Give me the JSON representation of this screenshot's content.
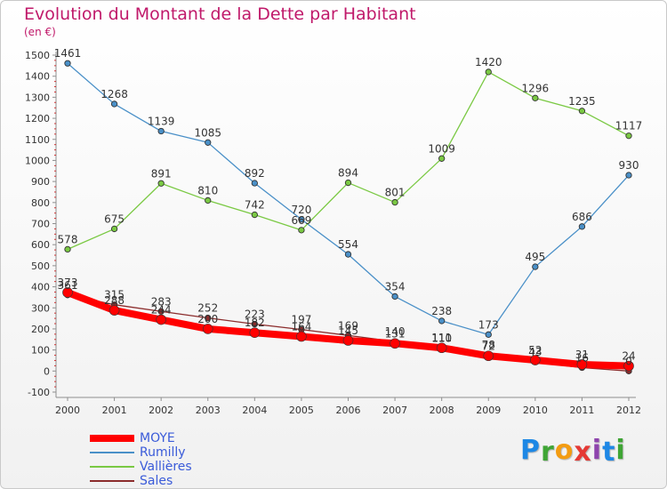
{
  "title": "Evolution du Montant de la Dette par Habitant",
  "subtitle": "(en €)",
  "logo": {
    "text": "Proxiti",
    "letters": [
      {
        "ch": "P",
        "color": "#1e88e5"
      },
      {
        "ch": "r",
        "color": "#3fa535"
      },
      {
        "ch": "o",
        "color": "#f39c12"
      },
      {
        "ch": "x",
        "color": "#e53935"
      },
      {
        "ch": "i",
        "color": "#8e44ad"
      },
      {
        "ch": "t",
        "color": "#1e88e5"
      },
      {
        "ch": "i",
        "color": "#3fa535"
      }
    ]
  },
  "chart_data": {
    "type": "line",
    "title": "Evolution du Montant de la Dette par Habitant",
    "subtitle": "(en €)",
    "x": [
      2000,
      2001,
      2002,
      2003,
      2004,
      2005,
      2006,
      2007,
      2008,
      2009,
      2010,
      2011,
      2012
    ],
    "ylim": [
      -100,
      1500
    ],
    "yticks": [
      -100,
      0,
      100,
      200,
      300,
      400,
      500,
      600,
      700,
      800,
      900,
      1000,
      1100,
      1200,
      1300,
      1400,
      1500
    ],
    "grid": false,
    "legend_position": "bottom-left",
    "series": [
      {
        "name": "MOYE",
        "color": "#ff0000",
        "line_width": 8,
        "values": [
          373,
          288,
          244,
          200,
          182,
          164,
          145,
          131,
          110,
          72,
          52,
          31,
          24
        ]
      },
      {
        "name": "Rumilly",
        "color": "#4a90c8",
        "line_width": 1.3,
        "values": [
          1461,
          1268,
          1139,
          1085,
          892,
          720,
          554,
          354,
          238,
          173,
          495,
          686,
          930
        ]
      },
      {
        "name": "Vallières",
        "color": "#7ac943",
        "line_width": 1.3,
        "values": [
          578,
          675,
          891,
          810,
          742,
          669,
          894,
          801,
          1009,
          1420,
          1296,
          1235,
          1117
        ]
      },
      {
        "name": "Sales",
        "color": "#8b2c2c",
        "line_width": 1.3,
        "values": [
          361,
          315,
          283,
          252,
          223,
          197,
          169,
          140,
          111,
          78,
          43,
          16,
          0
        ]
      }
    ],
    "data_labels": {
      "MOYE": [
        "373",
        "288",
        "244",
        "200",
        "182",
        "164",
        "145",
        "131",
        "110",
        "72",
        "52",
        "31",
        "24"
      ],
      "Rumilly": [
        "1461",
        "1268",
        "1139",
        "1085",
        "892",
        "720",
        "554",
        "354",
        "238",
        "173",
        "495",
        "686",
        "930"
      ],
      "Vallières": [
        "578",
        "675",
        "891",
        "810",
        "742",
        "669",
        "894",
        "801",
        "1009",
        "1420",
        "1296",
        "1235",
        "1117"
      ],
      "Sales": [
        "361",
        "315",
        "283",
        "252",
        "223",
        "197",
        "169",
        "140",
        "111",
        "78",
        "43",
        "16",
        "0"
      ]
    }
  }
}
